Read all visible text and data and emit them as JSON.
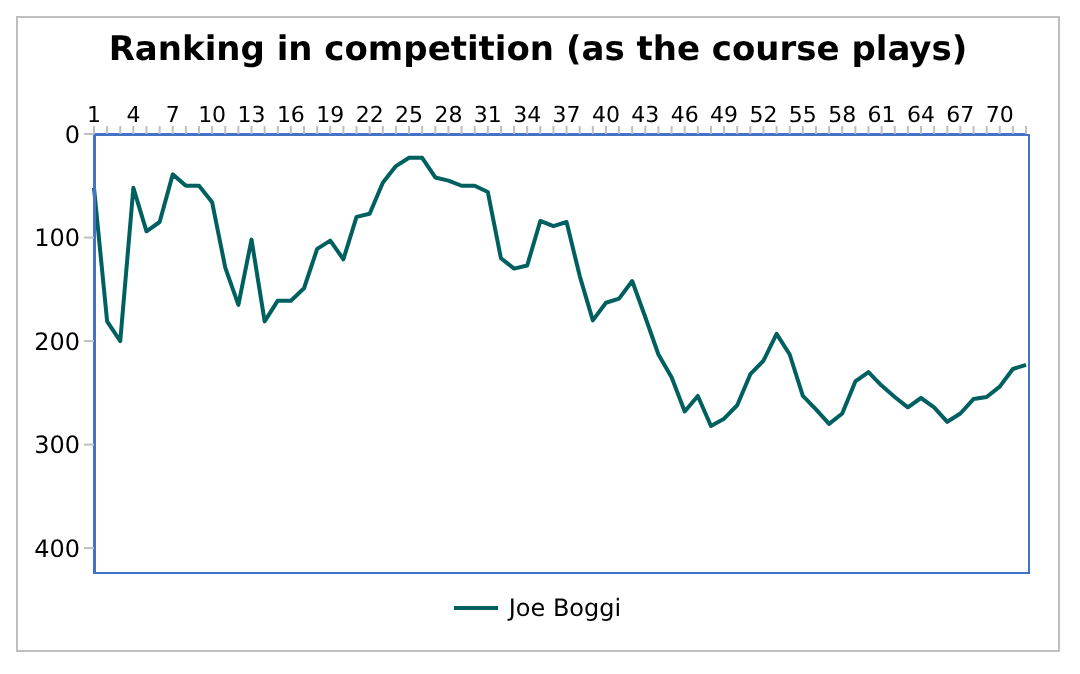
{
  "chart_data": {
    "type": "line",
    "title": "Ranking in competition (as the course plays)",
    "categories": [
      "1",
      null,
      null,
      "4",
      null,
      null,
      "7",
      null,
      null,
      "10",
      null,
      null,
      "13",
      null,
      null,
      "16",
      null,
      null,
      "19",
      null,
      null,
      "22",
      null,
      null,
      "25",
      null,
      null,
      "28",
      null,
      null,
      "31",
      null,
      null,
      "34",
      null,
      null,
      "37",
      null,
      null,
      "40",
      null,
      null,
      "43",
      null,
      null,
      "46",
      null,
      null,
      "49",
      null,
      null,
      "52",
      null,
      null,
      "55",
      null,
      null,
      "58",
      null,
      null,
      "61",
      null,
      null,
      "64",
      null,
      null,
      "67",
      null,
      null,
      "70",
      null,
      null
    ],
    "series": [
      {
        "name": "Joe Boggi",
        "color": "#006060",
        "values": [
          52,
          181,
          200,
          52,
          94,
          85,
          39,
          50,
          50,
          66,
          129,
          165,
          102,
          181,
          161,
          161,
          149,
          111,
          103,
          121,
          80,
          77,
          47,
          31,
          23,
          23,
          42,
          45,
          50,
          50,
          56,
          120,
          130,
          127,
          84,
          89,
          85,
          137,
          180,
          163,
          159,
          142,
          177,
          213,
          235,
          268,
          253,
          282,
          275,
          262,
          232,
          219,
          193,
          213,
          253,
          266,
          280,
          270,
          239,
          230,
          243,
          254,
          264,
          255,
          264,
          278,
          270,
          256,
          254,
          244,
          227,
          223
        ]
      }
    ],
    "ylim": [
      425,
      0
    ],
    "yticks": [
      0,
      100,
      200,
      300,
      400
    ],
    "grid": false,
    "legend": "bottom",
    "marker": "none",
    "line_style": "solid"
  }
}
